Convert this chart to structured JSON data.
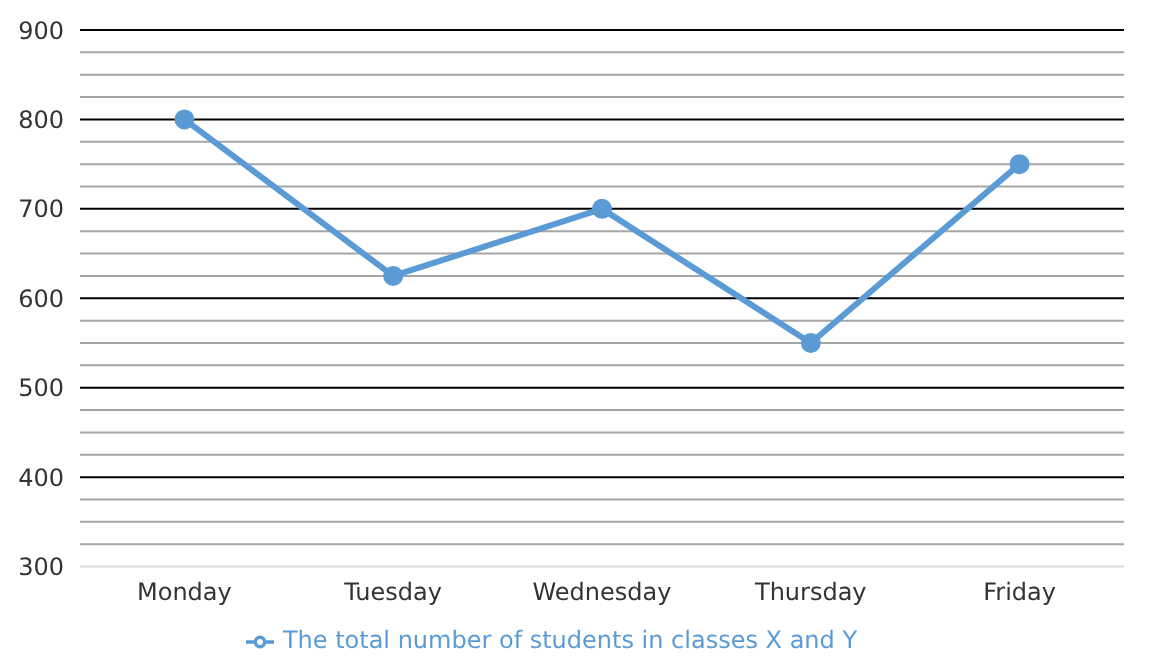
{
  "chart_data": {
    "type": "line",
    "categories": [
      "Monday",
      "Tuesday",
      "Wednesday",
      "Thursday",
      "Friday"
    ],
    "series": [
      {
        "name": "The total number of students in classes X and Y",
        "color": "#5b9bd5",
        "values": [
          800,
          625,
          700,
          550,
          750
        ]
      }
    ],
    "ylim": [
      300,
      900
    ],
    "yticks": [
      300,
      {
        "value": 325,
        "label": null
      },
      {
        "value": 350,
        "label": null
      },
      {
        "value": 375,
        "label": null
      },
      400,
      {
        "value": 425,
        "label": null
      },
      {
        "value": 450,
        "label": null
      },
      {
        "value": 475,
        "label": null
      },
      500,
      {
        "value": 525,
        "label": null
      },
      {
        "value": 550,
        "label": null
      },
      {
        "value": 575,
        "label": null
      },
      600,
      {
        "value": 625,
        "label": null
      },
      {
        "value": 650,
        "label": null
      },
      {
        "value": 675,
        "label": null
      },
      700,
      {
        "value": 725,
        "label": null
      },
      {
        "value": 750,
        "label": null
      },
      {
        "value": 775,
        "label": null
      },
      800,
      {
        "value": 825,
        "label": null
      },
      {
        "value": 850,
        "label": null
      },
      {
        "value": 875,
        "label": null
      },
      900
    ],
    "grid": "y",
    "legend": "bottom",
    "marker": "circle",
    "line_style": "solid"
  }
}
